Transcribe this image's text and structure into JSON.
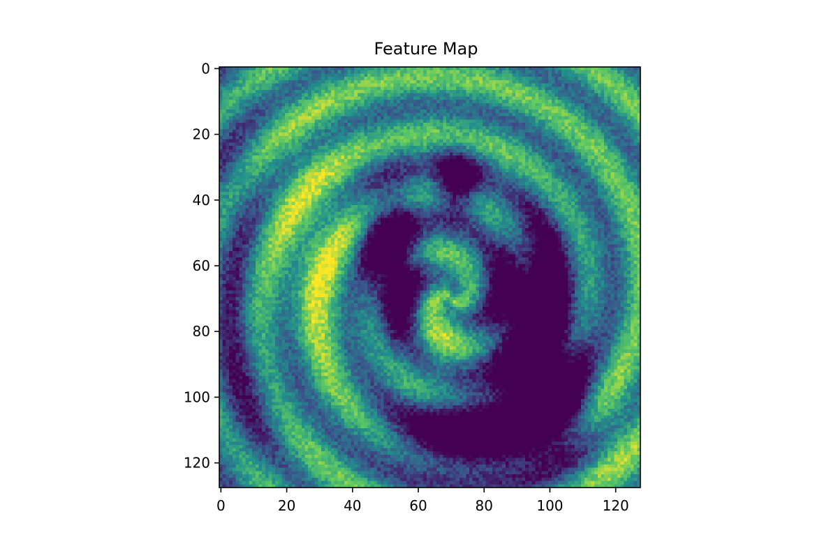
{
  "chart_data": {
    "type": "heatmap",
    "title": "Feature Map",
    "xlabel": "",
    "ylabel": "",
    "xlim": [
      -0.5,
      127.5
    ],
    "ylim": [
      127.5,
      -0.5
    ],
    "y_axis_inverted": true,
    "grid": false,
    "legend": "none",
    "colormap": "viridis",
    "colormap_stops": [
      "#440154",
      "#3b528b",
      "#21918c",
      "#5ec962",
      "#fde725"
    ],
    "grid_size": [
      128,
      128
    ],
    "x_ticks": [
      0,
      20,
      40,
      60,
      80,
      100,
      120
    ],
    "y_ticks": [
      0,
      20,
      40,
      60,
      80,
      100,
      120
    ],
    "description_note_hidden": ""
  }
}
